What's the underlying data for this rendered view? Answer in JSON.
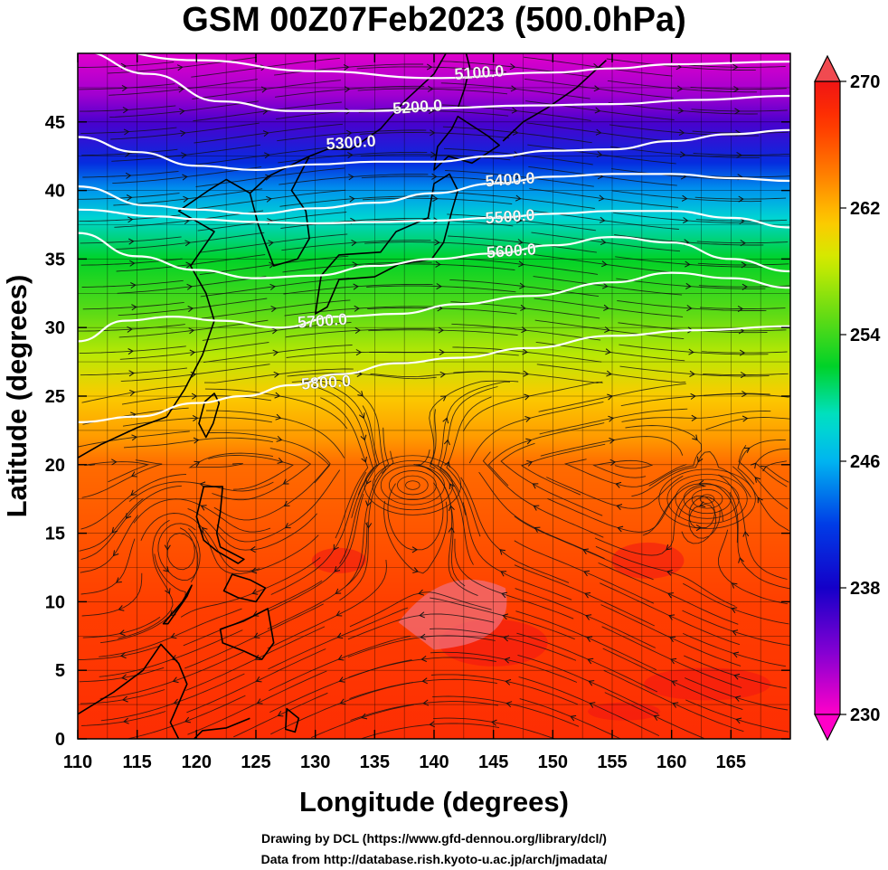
{
  "chart_data": {
    "type": "heatmap",
    "title": "GSM 00Z07Feb2023 (500.0hPa)",
    "xlabel": "Longitude (degrees)",
    "ylabel": "Latitude  (degrees)",
    "xlim": [
      110,
      170
    ],
    "ylim": [
      0,
      50
    ],
    "x_ticks": [
      "110",
      "115",
      "120",
      "125",
      "130",
      "135",
      "140",
      "145",
      "150",
      "155",
      "160",
      "165"
    ],
    "y_ticks": [
      "0",
      "5",
      "10",
      "15",
      "20",
      "25",
      "30",
      "35",
      "40",
      "45"
    ],
    "colorbar": {
      "min": 230,
      "max": 270,
      "ticks": [
        "230",
        "238",
        "246",
        "254",
        "262",
        "270"
      ]
    },
    "color_field_latitude_profile": {
      "lat": [
        0,
        10,
        15,
        20,
        22,
        25,
        28,
        31,
        35,
        38,
        40,
        42,
        45,
        47,
        50
      ],
      "value": [
        268,
        267,
        266,
        265,
        263,
        261,
        258,
        255,
        252,
        248,
        245,
        241,
        236,
        233,
        231
      ]
    },
    "contour_interval": 100,
    "contours": [
      {
        "label": "5100.0",
        "lon": 143.8,
        "lat": 48.6,
        "points": [
          [
            110,
            50.5
          ],
          [
            120,
            49.5
          ],
          [
            130,
            48.7
          ],
          [
            140,
            48.2
          ],
          [
            150,
            48.6
          ],
          [
            155,
            48.9
          ],
          [
            160,
            49.2
          ],
          [
            170,
            49.4
          ]
        ]
      },
      {
        "label": "5200.0",
        "lon": 138.6,
        "lat": 46.1,
        "points": [
          [
            110,
            50.2
          ],
          [
            116,
            48.5
          ],
          [
            122,
            46.5
          ],
          [
            128,
            45.8
          ],
          [
            135,
            45.8
          ],
          [
            140,
            46.0
          ],
          [
            148,
            46.2
          ],
          [
            155,
            46.3
          ],
          [
            162,
            46.6
          ],
          [
            170,
            46.9
          ]
        ]
      },
      {
        "label": "5300.0",
        "lon": 133.0,
        "lat": 43.5,
        "points": [
          [
            110,
            43.9
          ],
          [
            115,
            42.8
          ],
          [
            120,
            41.8
          ],
          [
            125,
            41.5
          ],
          [
            130,
            41.9
          ],
          [
            135,
            42.1
          ],
          [
            140,
            42.1
          ],
          [
            145,
            42.5
          ],
          [
            150,
            42.9
          ],
          [
            155,
            43.0
          ],
          [
            160,
            43.6
          ],
          [
            165,
            44.1
          ],
          [
            170,
            44.4
          ]
        ]
      },
      {
        "label": "5400.0",
        "lon": 146.4,
        "lat": 40.8,
        "points": [
          [
            110,
            40.3
          ],
          [
            116,
            38.9
          ],
          [
            120,
            38.6
          ],
          [
            125,
            38.3
          ],
          [
            130,
            38.7
          ],
          [
            135,
            39.1
          ],
          [
            140,
            39.8
          ],
          [
            145,
            40.5
          ],
          [
            150,
            41.0
          ],
          [
            155,
            41.2
          ],
          [
            160,
            41.2
          ],
          [
            165,
            40.9
          ],
          [
            170,
            40.7
          ]
        ]
      },
      {
        "label": "5500.0",
        "lon": 146.4,
        "lat": 38.1,
        "points": [
          [
            110,
            38.6
          ],
          [
            117,
            38.1
          ],
          [
            120,
            37.9
          ],
          [
            125,
            37.7
          ],
          [
            130,
            37.6
          ],
          [
            135,
            37.7
          ],
          [
            140,
            37.8
          ],
          [
            145,
            38.0
          ],
          [
            150,
            38.3
          ],
          [
            155,
            38.5
          ],
          [
            160,
            38.5
          ],
          [
            165,
            38.0
          ],
          [
            170,
            37.3
          ]
        ]
      },
      {
        "label": "5600.0",
        "lon": 146.5,
        "lat": 35.6,
        "points": [
          [
            110,
            36.9
          ],
          [
            115,
            35.2
          ],
          [
            120,
            34.2
          ],
          [
            125,
            33.6
          ],
          [
            130,
            33.8
          ],
          [
            135,
            34.5
          ],
          [
            140,
            35.0
          ],
          [
            145,
            35.4
          ],
          [
            150,
            36.0
          ],
          [
            155,
            36.6
          ],
          [
            160,
            36.2
          ],
          [
            165,
            35.0
          ],
          [
            170,
            34.1
          ]
        ]
      },
      {
        "label": "5700.0",
        "lon": 130.6,
        "lat": 30.5,
        "points": [
          [
            110,
            29.0
          ],
          [
            114,
            30.5
          ],
          [
            118,
            30.8
          ],
          [
            122,
            30.5
          ],
          [
            127,
            30.0
          ],
          [
            132,
            30.8
          ],
          [
            137,
            31.0
          ],
          [
            142,
            31.7
          ],
          [
            148,
            32.3
          ],
          [
            155,
            33.3
          ],
          [
            160,
            34.0
          ],
          [
            165,
            33.6
          ],
          [
            170,
            32.9
          ]
        ]
      },
      {
        "label": "5800.0",
        "lon": 130.9,
        "lat": 26.0,
        "points": [
          [
            110,
            23.1
          ],
          [
            115,
            23.5
          ],
          [
            120,
            24.5
          ],
          [
            124,
            25.0
          ],
          [
            128,
            25.8
          ],
          [
            132,
            26.6
          ],
          [
            137,
            27.4
          ],
          [
            142,
            27.8
          ],
          [
            148,
            28.5
          ],
          [
            155,
            29.4
          ],
          [
            162,
            29.8
          ],
          [
            170,
            30.1
          ]
        ]
      }
    ],
    "flow_features": [
      {
        "type": "cyclonic-eddy",
        "lon": 138.2,
        "lat": 18.5
      },
      {
        "type": "cyclonic-eddy",
        "lon": 163.0,
        "lat": 17.5
      }
    ]
  },
  "credit": {
    "line1": "Drawing by DCL (https://www.gfd-dennou.org/library/dcl/)",
    "line2": "Data from http://database.rish.kyoto-u.ac.jp/arch/jmadata/"
  }
}
